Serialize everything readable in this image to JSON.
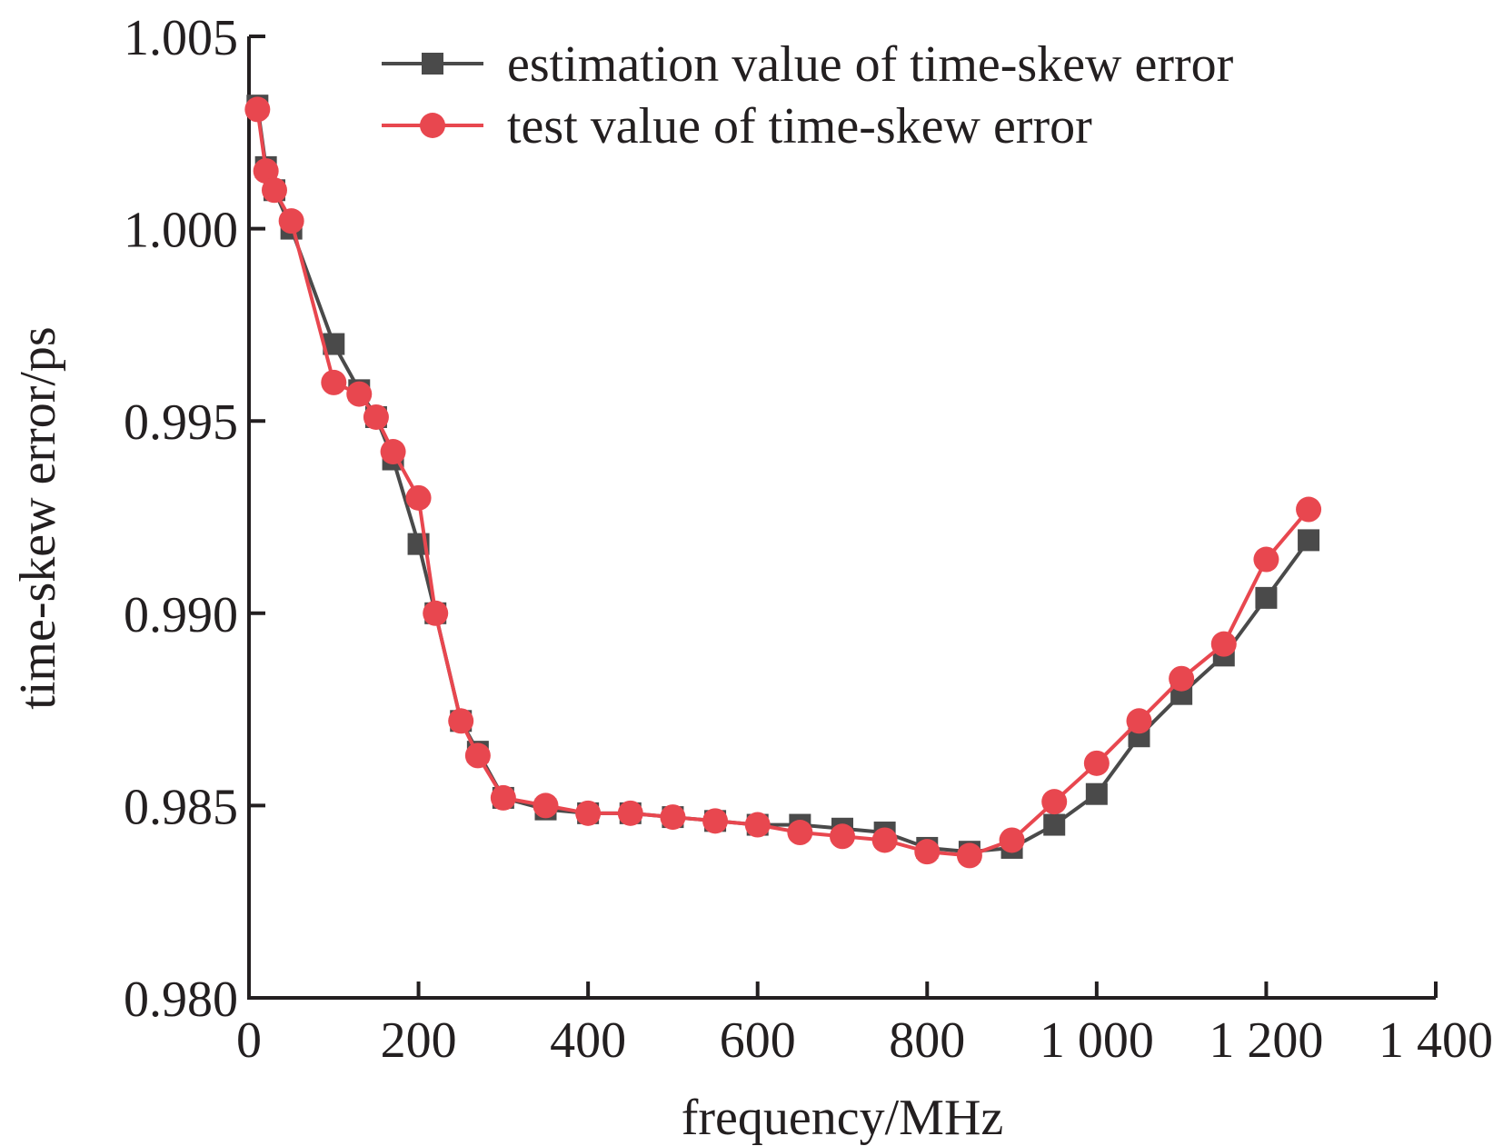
{
  "chart_data": {
    "type": "line",
    "title": "",
    "xlabel": "frequency/MHz",
    "ylabel": "time-skew error/ps",
    "xlim": [
      0,
      1400
    ],
    "ylim": [
      0.98,
      1.005
    ],
    "x_ticks": [
      0,
      200,
      400,
      600,
      800,
      1000,
      1200,
      1400
    ],
    "x_tick_labels": [
      "0",
      "200",
      "400",
      "600",
      "800",
      "1 000",
      "1 200",
      "1 400"
    ],
    "y_ticks": [
      0.98,
      0.985,
      0.99,
      0.995,
      1.0,
      1.005
    ],
    "y_tick_labels": [
      "0.980",
      "0.985",
      "0.990",
      "0.995",
      "1.000",
      "1.005"
    ],
    "grid": false,
    "legend_position": "top-right",
    "series": [
      {
        "name": "estimation value of time-skew error",
        "color": "#4a4a4a",
        "marker": "square",
        "points": [
          [
            10,
            1.0032
          ],
          [
            20,
            1.0016
          ],
          [
            30,
            1.001
          ],
          [
            50,
            1.0
          ],
          [
            100,
            0.997
          ],
          [
            130,
            0.9958
          ],
          [
            150,
            0.9951
          ],
          [
            170,
            0.994
          ],
          [
            200,
            0.9918
          ],
          [
            220,
            0.99
          ],
          [
            250,
            0.9872
          ],
          [
            270,
            0.9864
          ],
          [
            300,
            0.9852
          ],
          [
            350,
            0.9849
          ],
          [
            400,
            0.9848
          ],
          [
            450,
            0.9848
          ],
          [
            500,
            0.9847
          ],
          [
            550,
            0.9846
          ],
          [
            600,
            0.9845
          ],
          [
            650,
            0.9845
          ],
          [
            700,
            0.9844
          ],
          [
            750,
            0.9843
          ],
          [
            800,
            0.9839
          ],
          [
            850,
            0.9838
          ],
          [
            900,
            0.9839
          ],
          [
            950,
            0.9845
          ],
          [
            1000,
            0.9853
          ],
          [
            1050,
            0.9868
          ],
          [
            1100,
            0.9879
          ],
          [
            1150,
            0.9889
          ],
          [
            1200,
            0.9904
          ],
          [
            1250,
            0.9919
          ]
        ]
      },
      {
        "name": "test value of time-skew error",
        "color": "#e8474f",
        "marker": "circle",
        "points": [
          [
            10,
            1.0031
          ],
          [
            20,
            1.0015
          ],
          [
            30,
            1.001
          ],
          [
            50,
            1.0002
          ],
          [
            100,
            0.996
          ],
          [
            130,
            0.9957
          ],
          [
            150,
            0.9951
          ],
          [
            170,
            0.9942
          ],
          [
            200,
            0.993
          ],
          [
            220,
            0.99
          ],
          [
            250,
            0.9872
          ],
          [
            270,
            0.9863
          ],
          [
            300,
            0.9852
          ],
          [
            350,
            0.985
          ],
          [
            400,
            0.9848
          ],
          [
            450,
            0.9848
          ],
          [
            500,
            0.9847
          ],
          [
            550,
            0.9846
          ],
          [
            600,
            0.9845
          ],
          [
            650,
            0.9843
          ],
          [
            700,
            0.9842
          ],
          [
            750,
            0.9841
          ],
          [
            800,
            0.9838
          ],
          [
            850,
            0.9837
          ],
          [
            900,
            0.9841
          ],
          [
            950,
            0.9851
          ],
          [
            1000,
            0.9861
          ],
          [
            1050,
            0.9872
          ],
          [
            1100,
            0.9883
          ],
          [
            1150,
            0.9892
          ],
          [
            1200,
            0.9914
          ],
          [
            1250,
            0.9927
          ]
        ]
      }
    ]
  }
}
